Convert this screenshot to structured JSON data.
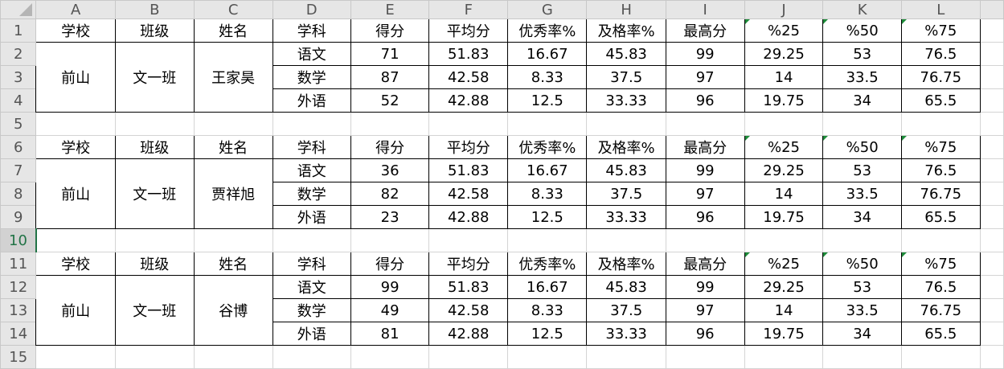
{
  "columns": [
    "A",
    "B",
    "C",
    "D",
    "E",
    "F",
    "G",
    "H",
    "I",
    "J",
    "K",
    "L"
  ],
  "row_numbers": [
    "1",
    "2",
    "3",
    "4",
    "5",
    "6",
    "7",
    "8",
    "9",
    "10",
    "11",
    "12",
    "13",
    "14",
    "15"
  ],
  "selected_row": "10",
  "header_labels": [
    "学校",
    "班级",
    "姓名",
    "学科",
    "得分",
    "平均分",
    "优秀率%",
    "及格率%",
    "最高分",
    "%25",
    "%50",
    "%75"
  ],
  "error_indicator_color": "#1e8c3a",
  "blocks": [
    {
      "school": "前山",
      "class": "文一班",
      "name": "王家昊",
      "subjects": [
        [
          "语文",
          "71",
          "51.83",
          "16.67",
          "45.83",
          "99",
          "29.25",
          "53",
          "76.5"
        ],
        [
          "数学",
          "87",
          "42.58",
          "8.33",
          "37.5",
          "97",
          "14",
          "33.5",
          "76.75"
        ],
        [
          "外语",
          "52",
          "42.88",
          "12.5",
          "33.33",
          "96",
          "19.75",
          "34",
          "65.5"
        ]
      ]
    },
    {
      "school": "前山",
      "class": "文一班",
      "name": "贾祥旭",
      "subjects": [
        [
          "语文",
          "36",
          "51.83",
          "16.67",
          "45.83",
          "99",
          "29.25",
          "53",
          "76.5"
        ],
        [
          "数学",
          "82",
          "42.58",
          "8.33",
          "37.5",
          "97",
          "14",
          "33.5",
          "76.75"
        ],
        [
          "外语",
          "23",
          "42.88",
          "12.5",
          "33.33",
          "96",
          "19.75",
          "34",
          "65.5"
        ]
      ]
    },
    {
      "school": "前山",
      "class": "文一班",
      "name": "谷博",
      "subjects": [
        [
          "语文",
          "99",
          "51.83",
          "16.67",
          "45.83",
          "99",
          "29.25",
          "53",
          "76.5"
        ],
        [
          "数学",
          "49",
          "42.58",
          "8.33",
          "37.5",
          "97",
          "14",
          "33.5",
          "76.75"
        ],
        [
          "外语",
          "81",
          "42.88",
          "12.5",
          "33.33",
          "96",
          "19.75",
          "34",
          "65.5"
        ]
      ]
    }
  ]
}
